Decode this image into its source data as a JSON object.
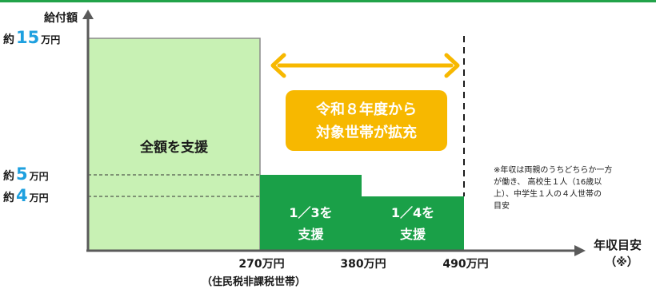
{
  "chart_data": {
    "type": "bar",
    "ylabel": "給付額",
    "xlabel": "年収目安",
    "xlabel_note": "（※）",
    "xlim": [
      0,
      490
    ],
    "ylim": [
      0,
      15
    ],
    "x_ticks": [
      {
        "value": 270,
        "label": "270万円",
        "sublabel": "（住民税非課税世帯）"
      },
      {
        "value": 380,
        "label": "380万円"
      },
      {
        "value": 490,
        "label": "490万円"
      }
    ],
    "y_ticks": [
      {
        "value": 15,
        "prefix": "約",
        "num": "15",
        "unit": "万円"
      },
      {
        "value": 5,
        "prefix": "約",
        "num": "5",
        "unit": "万円"
      },
      {
        "value": 4,
        "prefix": "約",
        "num": "4",
        "unit": "万円"
      }
    ],
    "bars": [
      {
        "x_start": 0,
        "x_end": 270,
        "value": 15,
        "label": "全額を支援",
        "label2": "",
        "style": "light"
      },
      {
        "x_start": 270,
        "x_end": 380,
        "value": 5,
        "label": "1／3を",
        "label2": "支援",
        "style": "dark"
      },
      {
        "x_start": 380,
        "x_end": 490,
        "value": 4,
        "label": "1／4を",
        "label2": "支援",
        "style": "dark"
      }
    ],
    "expansion": {
      "x_start": 270,
      "x_end": 490,
      "line1": "令和８年度から",
      "line2": "対象世帯が拡充"
    },
    "note_lines": [
      "※年収は両親のうちどちらか一方",
      "が働き、 高校生１人（16歳以",
      "上）、中学生１人の４人世帯の",
      "目安"
    ]
  },
  "colors": {
    "accent_line": "#22a34a",
    "light_bar": "#c8f1b4",
    "dark_bar": "#1aa048",
    "axis": "#5a5a5a",
    "arrow": "#f7b800",
    "callout": "#f7b800",
    "number_blue": "#1ea0df"
  }
}
